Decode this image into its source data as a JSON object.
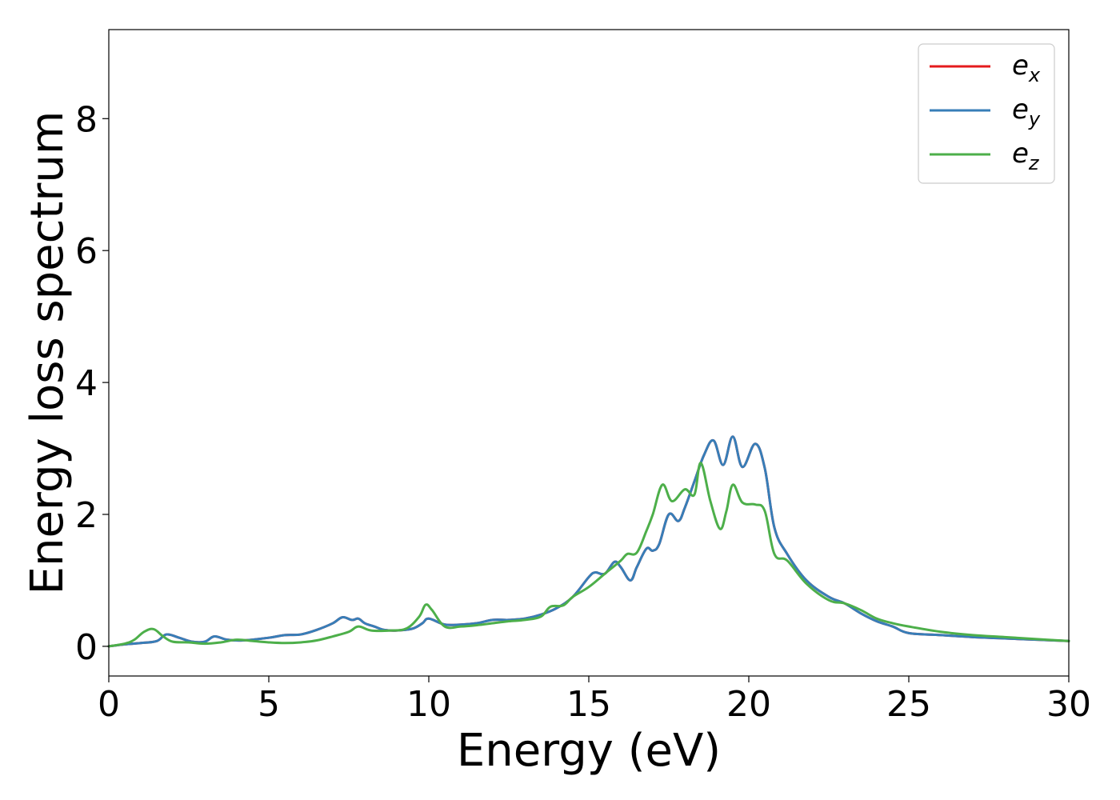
{
  "chart_data": {
    "type": "line",
    "title": "",
    "xlabel": "Energy (eV)",
    "ylabel": "Energy loss spectrum",
    "xlim": [
      0,
      30
    ],
    "ylim": [
      -0.45,
      9.35
    ],
    "xticks": [
      "0",
      "5",
      "10",
      "15",
      "20",
      "25",
      "30"
    ],
    "yticks": [
      "0",
      "2",
      "4",
      "6",
      "8"
    ],
    "grid": false,
    "legend_position": "top-right",
    "series": [
      {
        "name": "e",
        "subscript": "x",
        "color": "#e41a1c",
        "x": [
          0,
          0.5,
          1.0,
          1.5,
          1.8,
          2.2,
          2.6,
          3.0,
          3.3,
          3.7,
          4.2,
          5.0,
          5.5,
          6.0,
          6.5,
          7.0,
          7.3,
          7.6,
          7.8,
          8.0,
          8.3,
          8.6,
          9.0,
          9.5,
          9.8,
          10.0,
          10.5,
          11.0,
          11.5,
          12.0,
          12.5,
          13.0,
          13.5,
          14.0,
          14.5,
          15.0,
          15.2,
          15.5,
          15.8,
          16.0,
          16.3,
          16.5,
          16.8,
          17.0,
          17.2,
          17.5,
          17.8,
          18.0,
          18.3,
          18.6,
          18.9,
          19.2,
          19.5,
          19.8,
          20.2,
          20.5,
          20.8,
          21.2,
          21.8,
          22.5,
          23.0,
          23.5,
          24.0,
          24.5,
          25.0,
          26.0,
          27.0,
          28.0,
          29.0,
          30.0
        ],
        "y": [
          0.0,
          0.03,
          0.05,
          0.08,
          0.18,
          0.13,
          0.07,
          0.07,
          0.15,
          0.1,
          0.09,
          0.13,
          0.17,
          0.18,
          0.25,
          0.35,
          0.44,
          0.4,
          0.42,
          0.35,
          0.3,
          0.25,
          0.24,
          0.27,
          0.35,
          0.42,
          0.33,
          0.33,
          0.35,
          0.4,
          0.4,
          0.42,
          0.48,
          0.58,
          0.75,
          1.05,
          1.12,
          1.1,
          1.28,
          1.2,
          1.0,
          1.2,
          1.48,
          1.45,
          1.55,
          2.0,
          1.9,
          2.1,
          2.5,
          2.9,
          3.12,
          2.75,
          3.18,
          2.72,
          3.07,
          2.7,
          1.8,
          1.4,
          1.0,
          0.75,
          0.65,
          0.5,
          0.38,
          0.3,
          0.2,
          0.17,
          0.14,
          0.12,
          0.1,
          0.08
        ]
      },
      {
        "name": "e",
        "subscript": "y",
        "color": "#377eb8",
        "x": [
          0,
          0.5,
          1.0,
          1.5,
          1.8,
          2.2,
          2.6,
          3.0,
          3.3,
          3.7,
          4.2,
          5.0,
          5.5,
          6.0,
          6.5,
          7.0,
          7.3,
          7.6,
          7.8,
          8.0,
          8.3,
          8.6,
          9.0,
          9.5,
          9.8,
          10.0,
          10.5,
          11.0,
          11.5,
          12.0,
          12.5,
          13.0,
          13.5,
          14.0,
          14.5,
          15.0,
          15.2,
          15.5,
          15.8,
          16.0,
          16.3,
          16.5,
          16.8,
          17.0,
          17.2,
          17.5,
          17.8,
          18.0,
          18.3,
          18.6,
          18.9,
          19.2,
          19.5,
          19.8,
          20.2,
          20.5,
          20.8,
          21.2,
          21.8,
          22.5,
          23.0,
          23.5,
          24.0,
          24.5,
          25.0,
          26.0,
          27.0,
          28.0,
          29.0,
          30.0
        ],
        "y": [
          0.0,
          0.03,
          0.05,
          0.08,
          0.18,
          0.13,
          0.07,
          0.07,
          0.15,
          0.1,
          0.09,
          0.13,
          0.17,
          0.18,
          0.25,
          0.35,
          0.44,
          0.4,
          0.42,
          0.35,
          0.3,
          0.25,
          0.24,
          0.27,
          0.35,
          0.42,
          0.33,
          0.33,
          0.35,
          0.4,
          0.4,
          0.42,
          0.48,
          0.58,
          0.75,
          1.05,
          1.12,
          1.1,
          1.28,
          1.2,
          1.0,
          1.2,
          1.48,
          1.45,
          1.55,
          2.0,
          1.9,
          2.1,
          2.5,
          2.9,
          3.12,
          2.75,
          3.18,
          2.72,
          3.07,
          2.7,
          1.8,
          1.4,
          1.0,
          0.75,
          0.65,
          0.5,
          0.38,
          0.3,
          0.2,
          0.17,
          0.14,
          0.12,
          0.1,
          0.08
        ]
      },
      {
        "name": "e",
        "subscript": "z",
        "color": "#4daf4a",
        "x": [
          0,
          0.5,
          0.8,
          1.1,
          1.4,
          1.7,
          2.0,
          2.5,
          3.0,
          3.5,
          4.0,
          4.5,
          5.0,
          5.5,
          6.0,
          6.5,
          7.0,
          7.5,
          7.8,
          8.2,
          8.8,
          9.3,
          9.7,
          9.9,
          10.1,
          10.5,
          11.0,
          11.5,
          12.0,
          12.5,
          13.0,
          13.5,
          13.8,
          14.2,
          14.5,
          15.0,
          15.5,
          16.0,
          16.2,
          16.5,
          16.8,
          17.0,
          17.3,
          17.6,
          18.0,
          18.3,
          18.5,
          18.8,
          19.1,
          19.3,
          19.5,
          19.8,
          20.2,
          20.5,
          20.8,
          21.2,
          21.8,
          22.5,
          23.0,
          23.5,
          24.0,
          24.5,
          25.0,
          26.0,
          27.0,
          28.0,
          29.0,
          30.0
        ],
        "y": [
          0.0,
          0.04,
          0.1,
          0.22,
          0.26,
          0.15,
          0.07,
          0.06,
          0.04,
          0.06,
          0.1,
          0.08,
          0.06,
          0.05,
          0.06,
          0.09,
          0.15,
          0.22,
          0.3,
          0.24,
          0.24,
          0.27,
          0.45,
          0.63,
          0.55,
          0.3,
          0.3,
          0.32,
          0.35,
          0.38,
          0.4,
          0.45,
          0.6,
          0.62,
          0.75,
          0.9,
          1.1,
          1.3,
          1.4,
          1.42,
          1.75,
          2.0,
          2.45,
          2.2,
          2.38,
          2.3,
          2.78,
          2.2,
          1.78,
          2.05,
          2.45,
          2.18,
          2.15,
          2.05,
          1.4,
          1.3,
          0.95,
          0.7,
          0.65,
          0.55,
          0.42,
          0.35,
          0.3,
          0.22,
          0.17,
          0.14,
          0.11,
          0.08
        ]
      }
    ]
  }
}
